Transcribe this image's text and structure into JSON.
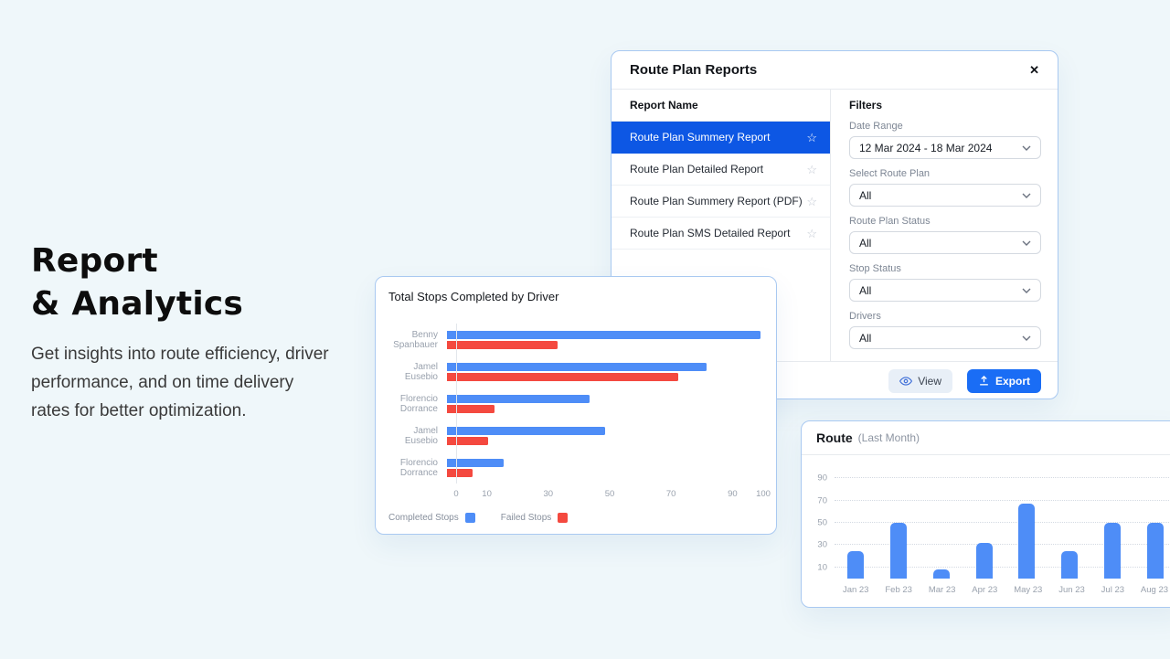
{
  "hero": {
    "title_line1": "Report",
    "title_line2": "& Analytics",
    "description": "Get insights into route efficiency, driver performance, and on time delivery rates for better optimization."
  },
  "icons": {
    "close": "✕",
    "star": "☆"
  },
  "modal": {
    "title": "Route Plan Reports",
    "report_list": {
      "header": "Report Name",
      "items": [
        {
          "label": "Route Plan Summery Report",
          "selected": true
        },
        {
          "label": "Route Plan Detailed Report",
          "selected": false
        },
        {
          "label": "Route Plan Summery Report (PDF)",
          "selected": false
        },
        {
          "label": "Route Plan SMS Detailed Report",
          "selected": false
        }
      ]
    },
    "filters": {
      "header": "Filters",
      "fields": [
        {
          "label": "Date Range",
          "value": "12 Mar 2024 - 18 Mar 2024"
        },
        {
          "label": "Select Route Plan",
          "value": "All"
        },
        {
          "label": "Route Plan Status",
          "value": "All"
        },
        {
          "label": "Stop Status",
          "value": "All"
        },
        {
          "label": "Drivers",
          "value": "All"
        }
      ]
    },
    "footer": {
      "view_label": "View",
      "export_label": "Export"
    }
  },
  "chart_data": [
    {
      "type": "bar",
      "orientation": "horizontal",
      "title": "Total Stops Completed by Driver",
      "categories": [
        [
          "Benny",
          "Spanbauer"
        ],
        [
          "Jamel",
          "Eusebio"
        ],
        [
          "Florencio",
          "Dorrance"
        ],
        [
          "Jamel",
          "Eusebio"
        ],
        [
          "Florencio",
          "Dorrance"
        ]
      ],
      "series": [
        {
          "name": "Completed Stops",
          "color": "#4e8df7",
          "values": [
            99,
            82,
            45,
            50,
            18
          ]
        },
        {
          "name": "Failed Stops",
          "color": "#f4493f",
          "values": [
            35,
            73,
            15,
            13,
            8
          ]
        }
      ],
      "x_ticks": [
        0,
        10,
        30,
        50,
        70,
        90,
        100
      ],
      "xlim": [
        0,
        100
      ],
      "legend_position": "bottom-left",
      "grid": false
    },
    {
      "type": "bar",
      "orientation": "vertical",
      "title": "Route",
      "subtitle": "(Last Month)",
      "categories": [
        "Jan 23",
        "Feb 23",
        "Mar 23",
        "Apr 23",
        "May 23",
        "Jun 23",
        "Jul 23",
        "Aug 23"
      ],
      "values": [
        25,
        50,
        8,
        32,
        67,
        25,
        50,
        50
      ],
      "y_ticks": [
        10,
        30,
        50,
        70,
        90
      ],
      "ylim": [
        0,
        100
      ],
      "bar_color": "#4e8df7",
      "grid": "dotted-horizontal"
    }
  ],
  "colors": {
    "page_bg": "#eff7fa",
    "card_border": "#a9c9f1",
    "selected_row_blue": "#0d57e4",
    "export_blue": "#1a6df5",
    "bar_blue": "#4e8df7",
    "bar_red": "#f4493f"
  }
}
